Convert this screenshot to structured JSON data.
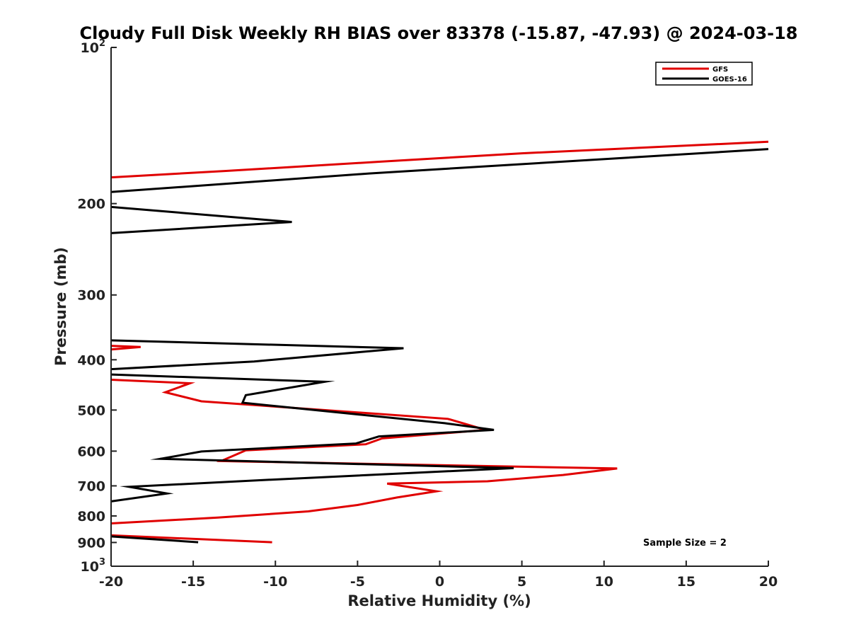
{
  "chart_data": {
    "type": "line",
    "title": "Cloudy Full Disk Weekly RH BIAS over 83378 (-15.87, -47.93) @ 2024-03-18",
    "xlabel": "Relative Humidity (%)",
    "ylabel": "Pressure (mb)",
    "xlim": [
      -20,
      20
    ],
    "ylim": [
      1000,
      100
    ],
    "y_scale": "log",
    "y_reversed": true,
    "grid": false,
    "legend_position": "top-right",
    "x_ticks": [
      "-20",
      "-15",
      "-10",
      "-5",
      "0",
      "5",
      "10",
      "15",
      "20"
    ],
    "y_ticks": [
      {
        "value": 100,
        "base": "10",
        "exp": "2"
      },
      {
        "value": 200,
        "label": "200"
      },
      {
        "value": 300,
        "label": "300"
      },
      {
        "value": 400,
        "label": "400"
      },
      {
        "value": 500,
        "label": "500"
      },
      {
        "value": 600,
        "label": "600"
      },
      {
        "value": 700,
        "label": "700"
      },
      {
        "value": 800,
        "label": "800"
      },
      {
        "value": 900,
        "label": "900"
      },
      {
        "value": 1000,
        "base": "10",
        "exp": "3"
      }
    ],
    "series": [
      {
        "name": "GFS",
        "color": "#e00000",
        "segments": [
          [
            [
              -20,
              178
            ],
            [
              -13,
              173
            ],
            [
              -3.5,
              166
            ],
            [
              5,
              160
            ],
            [
              20,
              152
            ]
          ],
          [
            [
              -20,
              376
            ],
            [
              -18.2,
              378
            ],
            [
              -20,
              382
            ]
          ],
          [
            [
              -20,
              437
            ],
            [
              -15.2,
              444
            ],
            [
              -16.7,
              462
            ],
            [
              -14.5,
              481
            ],
            [
              0.5,
              520
            ],
            [
              2.8,
              546
            ],
            [
              -3.5,
              567
            ],
            [
              -4.5,
              582
            ],
            [
              -11.8,
              598
            ],
            [
              -13.3,
              627
            ],
            [
              10.8,
              648
            ],
            [
              7.5,
              667
            ],
            [
              2.9,
              686
            ],
            [
              -3.2,
              693
            ],
            [
              -0.2,
              717
            ],
            [
              -2.6,
              737
            ],
            [
              -5,
              762
            ],
            [
              -8,
              784
            ],
            [
              -13.5,
              806
            ],
            [
              -20,
              827
            ]
          ],
          [
            [
              -20,
              872
            ],
            [
              -10.2,
              899
            ]
          ]
        ]
      },
      {
        "name": "GOES-16",
        "color": "#000000",
        "segments": [
          [
            [
              -20,
              190
            ],
            [
              -4.3,
              175
            ],
            [
              20,
              157
            ]
          ],
          [
            [
              -20,
              203
            ],
            [
              -9,
              217
            ],
            [
              -20,
              228
            ]
          ],
          [
            [
              -20,
              367
            ],
            [
              -2.2,
              380
            ],
            [
              -11.3,
              403
            ],
            [
              -20,
              417
            ]
          ],
          [
            [
              -20,
              427
            ],
            [
              -7,
              441
            ],
            [
              -11.8,
              468
            ],
            [
              -12,
              484
            ],
            [
              0.3,
              530
            ],
            [
              3.3,
              546
            ],
            [
              -3.7,
              562
            ],
            [
              -5.1,
              580
            ],
            [
              -14.5,
              601
            ],
            [
              -17,
              621
            ],
            [
              4.5,
              647
            ],
            [
              -9.8,
              680
            ],
            [
              -18.9,
              703
            ],
            [
              -16.6,
              724
            ],
            [
              -20,
              750
            ]
          ],
          [
            [
              -20,
              876
            ],
            [
              -14.7,
              899
            ]
          ]
        ]
      }
    ],
    "annotation": "Sample Size = 2"
  }
}
